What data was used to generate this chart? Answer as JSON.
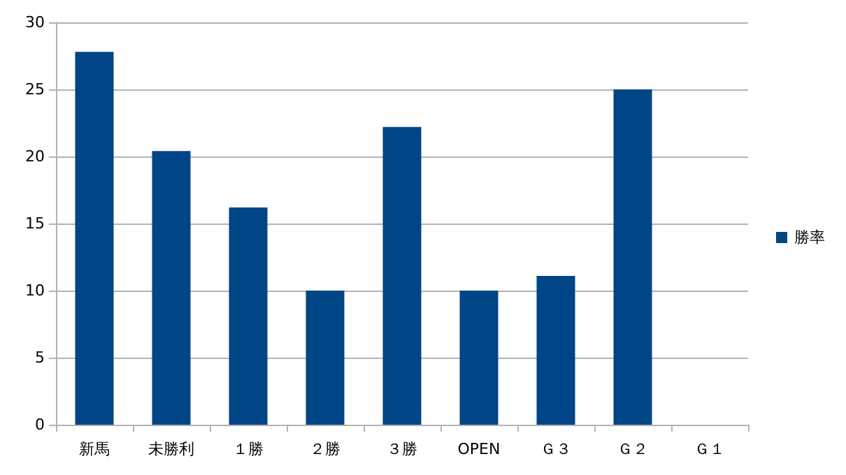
{
  "chart_data": {
    "type": "bar",
    "categories": [
      "新馬",
      "未勝利",
      "１勝",
      "２勝",
      "３勝",
      "OPEN",
      "Ｇ３",
      "Ｇ２",
      "Ｇ１"
    ],
    "series": [
      {
        "name": "勝率",
        "color": "#004586",
        "values": [
          27.8,
          20.4,
          16.2,
          10,
          22.2,
          10,
          11.1,
          25,
          0
        ]
      }
    ],
    "ylim": [
      0,
      30
    ],
    "yticks": [
      0,
      5,
      10,
      15,
      20,
      25,
      30
    ],
    "grid": "y",
    "legend": "right"
  }
}
